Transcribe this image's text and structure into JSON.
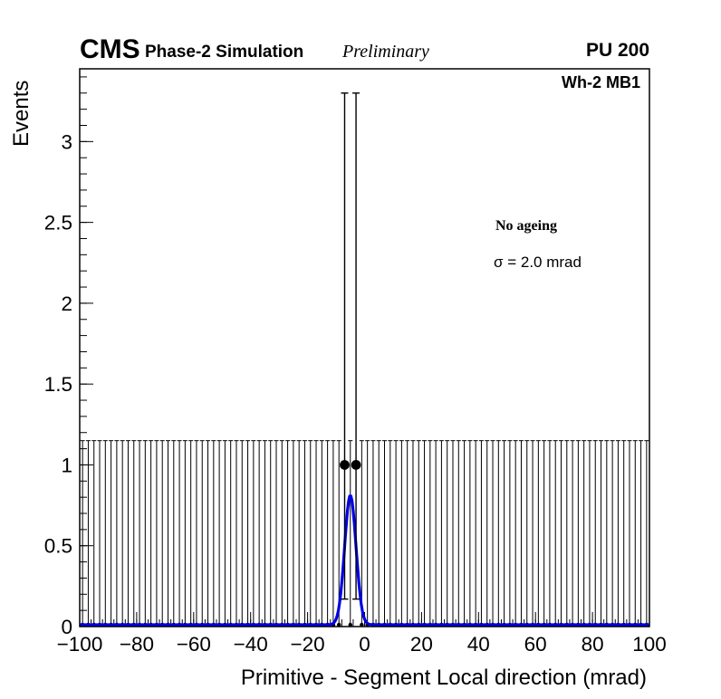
{
  "header": {
    "experiment": "CMS",
    "simulation": "Phase-2 Simulation",
    "preliminary": "Preliminary",
    "pileup": "PU 200"
  },
  "plot_labels": {
    "chamber": "Wh-2 MB1",
    "ageing": "No ageing",
    "resolution": "σ = 2.0 mrad"
  },
  "chart_data": {
    "type": "scatter",
    "title": "",
    "xlabel": "Primitive - Segment Local direction (mrad)",
    "ylabel": "Events",
    "xlim": [
      -100,
      100
    ],
    "ylim": [
      0,
      3.45
    ],
    "x_major_ticks": [
      -100,
      -80,
      -60,
      -40,
      -20,
      0,
      20,
      40,
      60,
      80,
      100
    ],
    "x_minor_step": 4,
    "y_major_ticks": [
      0,
      0.5,
      1,
      1.5,
      2,
      2.5,
      3
    ],
    "y_minor_step": 0.1,
    "grid": false,
    "legend": false,
    "bin_width": 2,
    "points": [
      {
        "x": -7,
        "y": 1,
        "err_low": 0.17,
        "err_high": 3.3
      },
      {
        "x": -3,
        "y": 1,
        "err_low": 0.17,
        "err_high": 3.3
      }
    ],
    "empty_bins": {
      "y": 0,
      "err_high": 1.15,
      "note": "all other 2 mrad bins contain 0 events; Poisson upper error bars drawn to ~1.15"
    },
    "fit": {
      "shape": "gaussian",
      "mean": -5.0,
      "sigma": 2.0,
      "amplitude": 0.8,
      "color": "#0000e6"
    },
    "marker_color": "#000000",
    "frame_color": "#000000"
  }
}
